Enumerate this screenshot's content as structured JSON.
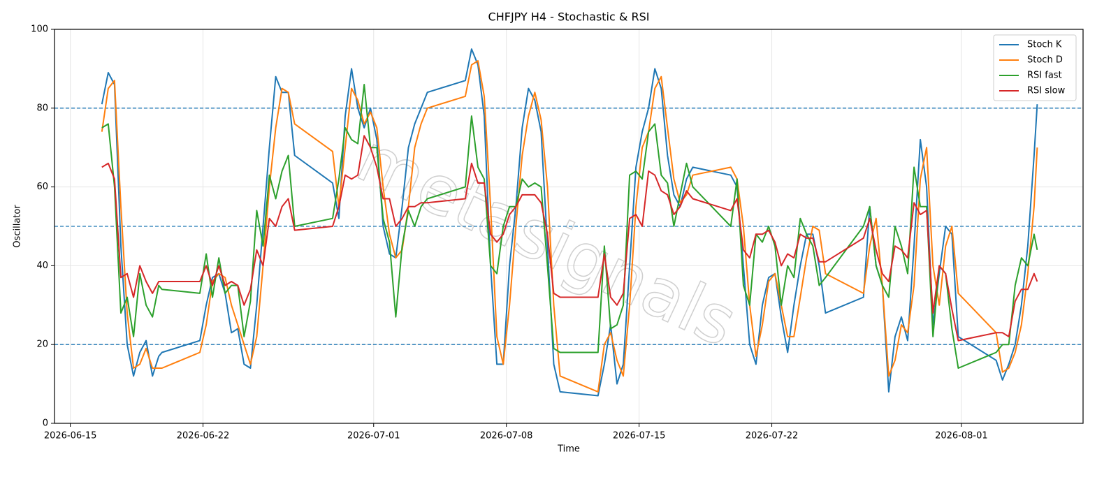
{
  "chart_data": {
    "type": "line",
    "title": "CHFJPY H4 - Stochastic & RSI",
    "xlabel": "Time",
    "ylabel": "Oscillator",
    "watermark": "metasignals",
    "x": [
      "2026-06-16T16:00",
      "2026-06-17T00:00",
      "2026-06-17T08:00",
      "2026-06-17T16:00",
      "2026-06-18T00:00",
      "2026-06-18T08:00",
      "2026-06-18T16:00",
      "2026-06-19T00:00",
      "2026-06-19T08:00",
      "2026-06-19T16:00",
      "2026-06-19T20:00",
      "2026-06-21T20:00",
      "2026-06-22T04:00",
      "2026-06-22T12:00",
      "2026-06-22T20:00",
      "2026-06-23T04:00",
      "2026-06-23T12:00",
      "2026-06-23T20:00",
      "2026-06-24T04:00",
      "2026-06-24T12:00",
      "2026-06-24T20:00",
      "2026-06-25T04:00",
      "2026-06-25T12:00",
      "2026-06-25T20:00",
      "2026-06-26T04:00",
      "2026-06-26T12:00",
      "2026-06-26T20:00",
      "2026-06-28T20:00",
      "2026-06-29T04:00",
      "2026-06-29T12:00",
      "2026-06-29T20:00",
      "2026-06-30T04:00",
      "2026-06-30T12:00",
      "2026-06-30T20:00",
      "2026-07-01T04:00",
      "2026-07-01T12:00",
      "2026-07-01T20:00",
      "2026-07-02T04:00",
      "2026-07-02T12:00",
      "2026-07-02T20:00",
      "2026-07-03T04:00",
      "2026-07-03T12:00",
      "2026-07-03T20:00",
      "2026-07-05T20:00",
      "2026-07-06T04:00",
      "2026-07-06T12:00",
      "2026-07-06T20:00",
      "2026-07-07T04:00",
      "2026-07-07T12:00",
      "2026-07-07T20:00",
      "2026-07-08T04:00",
      "2026-07-08T12:00",
      "2026-07-08T20:00",
      "2026-07-09T04:00",
      "2026-07-09T12:00",
      "2026-07-09T20:00",
      "2026-07-10T04:00",
      "2026-07-10T12:00",
      "2026-07-10T20:00",
      "2026-07-12T20:00",
      "2026-07-13T04:00",
      "2026-07-13T12:00",
      "2026-07-13T20:00",
      "2026-07-14T04:00",
      "2026-07-14T12:00",
      "2026-07-14T20:00",
      "2026-07-15T04:00",
      "2026-07-15T12:00",
      "2026-07-15T20:00",
      "2026-07-16T04:00",
      "2026-07-16T12:00",
      "2026-07-16T20:00",
      "2026-07-17T04:00",
      "2026-07-17T12:00",
      "2026-07-17T20:00",
      "2026-07-19T20:00",
      "2026-07-20T04:00",
      "2026-07-20T12:00",
      "2026-07-20T20:00",
      "2026-07-21T04:00",
      "2026-07-21T12:00",
      "2026-07-21T20:00",
      "2026-07-22T04:00",
      "2026-07-22T12:00",
      "2026-07-22T20:00",
      "2026-07-23T04:00",
      "2026-07-23T12:00",
      "2026-07-23T20:00",
      "2026-07-24T04:00",
      "2026-07-24T12:00",
      "2026-07-24T20:00",
      "2026-07-26T20:00",
      "2026-07-27T04:00",
      "2026-07-27T12:00",
      "2026-07-27T20:00",
      "2026-07-28T04:00",
      "2026-07-28T12:00",
      "2026-07-28T20:00",
      "2026-07-29T04:00",
      "2026-07-29T12:00",
      "2026-07-29T20:00",
      "2026-07-30T04:00",
      "2026-07-30T12:00",
      "2026-07-30T20:00",
      "2026-07-31T04:00",
      "2026-07-31T12:00",
      "2026-07-31T20:00",
      "2026-08-02T20:00",
      "2026-08-03T04:00",
      "2026-08-03T12:00",
      "2026-08-03T20:00",
      "2026-08-04T04:00",
      "2026-08-04T12:00",
      "2026-08-04T20:00",
      "2026-08-05T00:00"
    ],
    "series": [
      {
        "name": "Stoch K",
        "color": "#1f77b4",
        "values": [
          81,
          89,
          86,
          45,
          20,
          12,
          18,
          21,
          12,
          17,
          18,
          21,
          30,
          37,
          38,
          33,
          23,
          24,
          15,
          14,
          30,
          50,
          70,
          88,
          84,
          84,
          68,
          61,
          52,
          78,
          90,
          80,
          75,
          80,
          72,
          50,
          43,
          42,
          55,
          70,
          76,
          80,
          84,
          87,
          95,
          91,
          78,
          40,
          15,
          15,
          40,
          55,
          75,
          85,
          82,
          74,
          45,
          15,
          8,
          7,
          15,
          25,
          10,
          15,
          40,
          65,
          74,
          80,
          90,
          85,
          68,
          58,
          55,
          62,
          65,
          63,
          60,
          40,
          20,
          15,
          30,
          37,
          38,
          27,
          18,
          30,
          40,
          48,
          48,
          40,
          28,
          32,
          55,
          40,
          35,
          8,
          22,
          27,
          21,
          45,
          72,
          60,
          25,
          38,
          50,
          48,
          22,
          16,
          11,
          15,
          20,
          30,
          45,
          68,
          81
        ]
      },
      {
        "name": "Stoch D",
        "color": "#ff7f0e",
        "values": [
          74,
          85,
          87,
          55,
          28,
          14,
          15,
          19,
          14,
          14,
          14,
          18,
          25,
          36,
          38,
          37,
          30,
          25,
          20,
          15,
          22,
          40,
          60,
          75,
          85,
          84,
          76,
          69,
          55,
          70,
          85,
          82,
          76,
          79,
          75,
          60,
          48,
          42,
          44,
          55,
          70,
          76,
          80,
          83,
          91,
          92,
          83,
          55,
          22,
          15,
          30,
          50,
          68,
          78,
          84,
          77,
          60,
          30,
          12,
          8,
          20,
          23,
          16,
          12,
          30,
          55,
          70,
          74,
          85,
          88,
          75,
          62,
          56,
          58,
          63,
          65,
          62,
          50,
          30,
          17,
          25,
          36,
          38,
          30,
          22,
          22,
          32,
          42,
          50,
          49,
          38,
          33,
          45,
          52,
          35,
          12,
          16,
          25,
          23,
          35,
          62,
          70,
          40,
          30,
          45,
          50,
          33,
          23,
          13,
          14,
          18,
          25,
          38,
          55,
          70
        ]
      },
      {
        "name": "RSI fast",
        "color": "#2ca02c",
        "values": [
          75,
          76,
          60,
          28,
          32,
          22,
          38,
          30,
          27,
          35,
          34,
          33,
          43,
          32,
          42,
          33,
          35,
          35,
          22,
          31,
          54,
          45,
          63,
          57,
          64,
          68,
          50,
          52,
          62,
          75,
          72,
          71,
          86,
          70,
          70,
          52,
          46,
          27,
          45,
          54,
          50,
          55,
          57,
          60,
          78,
          65,
          62,
          40,
          38,
          50,
          55,
          55,
          62,
          60,
          61,
          60,
          40,
          19,
          18,
          18,
          45,
          24,
          25,
          30,
          63,
          64,
          62,
          74,
          76,
          63,
          61,
          50,
          58,
          66,
          60,
          50,
          62,
          35,
          30,
          48,
          46,
          50,
          45,
          30,
          40,
          37,
          52,
          48,
          45,
          35,
          37,
          50,
          55,
          40,
          35,
          32,
          50,
          45,
          38,
          65,
          55,
          55,
          22,
          40,
          38,
          24,
          14,
          18,
          20,
          20,
          35,
          42,
          40,
          48,
          44
        ]
      },
      {
        "name": "RSI slow",
        "color": "#d62728",
        "values": [
          65,
          66,
          62,
          37,
          38,
          32,
          40,
          36,
          33,
          36,
          36,
          36,
          40,
          35,
          40,
          35,
          36,
          35,
          30,
          34,
          44,
          40,
          52,
          50,
          55,
          57,
          49,
          50,
          55,
          63,
          62,
          63,
          73,
          70,
          65,
          57,
          57,
          50,
          52,
          55,
          55,
          56,
          56,
          57,
          66,
          61,
          61,
          48,
          46,
          48,
          53,
          55,
          58,
          58,
          58,
          56,
          48,
          33,
          32,
          32,
          43,
          32,
          30,
          33,
          52,
          53,
          50,
          64,
          63,
          59,
          58,
          53,
          55,
          59,
          57,
          54,
          57,
          44,
          42,
          48,
          48,
          49,
          46,
          40,
          43,
          42,
          48,
          47,
          47,
          41,
          41,
          47,
          52,
          44,
          38,
          36,
          45,
          44,
          42,
          56,
          53,
          54,
          28,
          40,
          38,
          29,
          21,
          23,
          23,
          22,
          31,
          34,
          34,
          38,
          36
        ]
      }
    ],
    "xlim": [
      "2026-06-14T04:00",
      "2026-08-07T10:00"
    ],
    "xticks": [
      "2026-06-15",
      "2026-06-22",
      "2026-07-01",
      "2026-07-08",
      "2026-07-15",
      "2026-07-22",
      "2026-08-01"
    ],
    "ylim": [
      0,
      100
    ],
    "yticks": [
      0,
      20,
      40,
      60,
      80,
      100
    ],
    "hlines": [
      20,
      50,
      80
    ],
    "hline_color": "#1f77b4",
    "grid": true,
    "legend": "upper right"
  }
}
